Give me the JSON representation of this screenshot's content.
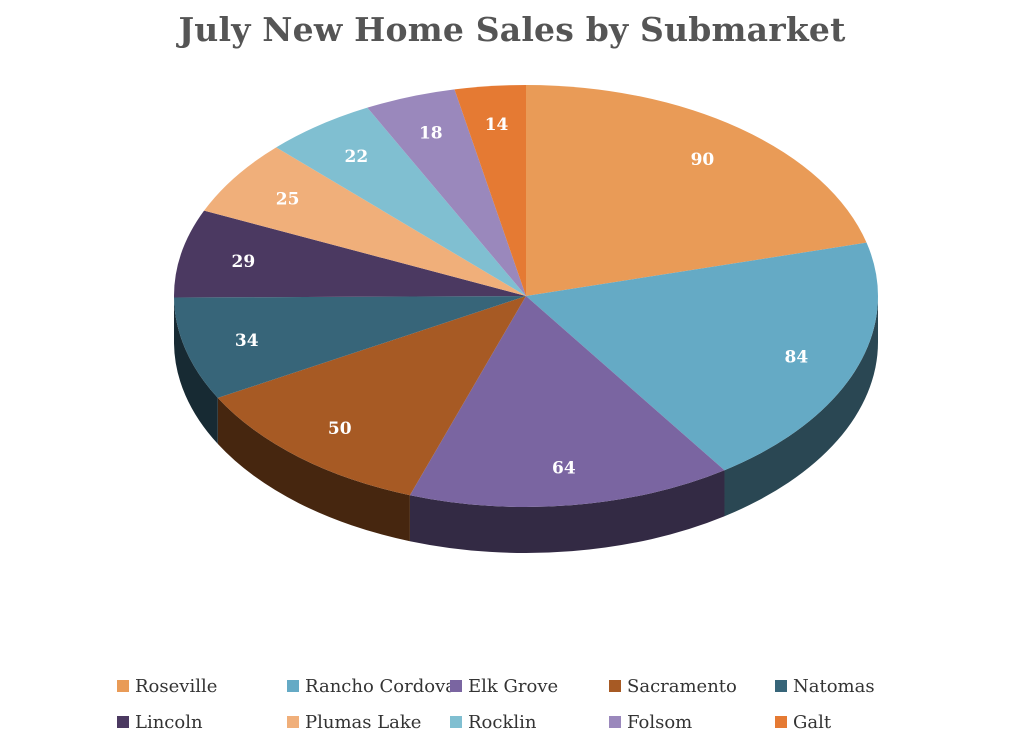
{
  "chart_data": {
    "type": "pie",
    "title": "July New Home Sales by Submarket",
    "style": "3d",
    "legend_position": "bottom",
    "slices": [
      {
        "label": "Roseville",
        "value": 90,
        "color": "#E99B57"
      },
      {
        "label": "Rancho Cordova",
        "value": 84,
        "color": "#65AAC5"
      },
      {
        "label": "Elk Grove",
        "value": 64,
        "color": "#7A65A1"
      },
      {
        "label": "Sacramento",
        "value": 50,
        "color": "#A75A24"
      },
      {
        "label": "Natomas",
        "value": 34,
        "color": "#376579"
      },
      {
        "label": "Lincoln",
        "value": 29,
        "color": "#4B3961"
      },
      {
        "label": "Plumas Lake",
        "value": 25,
        "color": "#F0AF7A"
      },
      {
        "label": "Rocklin",
        "value": 22,
        "color": "#80BFD1"
      },
      {
        "label": "Folsom",
        "value": 18,
        "color": "#9A88BC"
      },
      {
        "label": "Galt",
        "value": 14,
        "color": "#E57A33"
      }
    ]
  }
}
